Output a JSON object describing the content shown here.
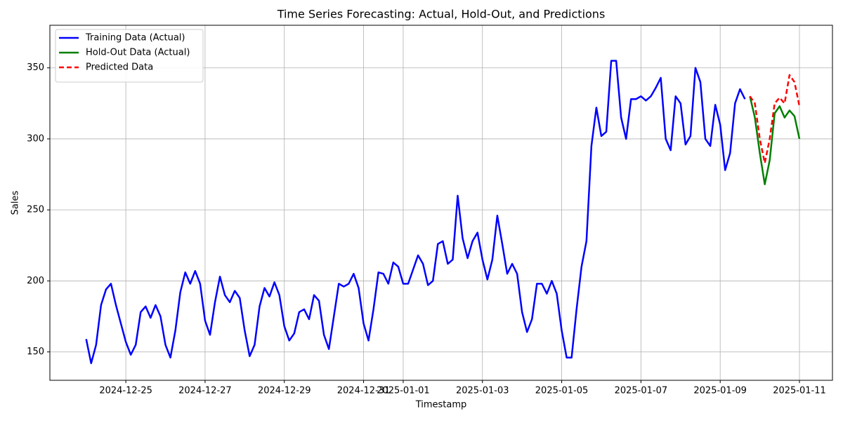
{
  "chart_data": {
    "type": "line",
    "title": "Time Series Forecasting: Actual, Hold-Out, and Predictions",
    "x_label": "Timestamp",
    "y_label": "Sales",
    "xlim": [
      "2024-12-23 02:00",
      "2025-01-11 20:00"
    ],
    "xticks": [
      "2024-12-25",
      "2024-12-27",
      "2024-12-29",
      "2024-12-31",
      "2025-01-01",
      "2025-01-03",
      "2025-01-05",
      "2025-01-07",
      "2025-01-09",
      "2025-01-11"
    ],
    "ylim": [
      130,
      380
    ],
    "yticks": [
      150,
      200,
      250,
      300,
      350
    ],
    "grid": true,
    "legend": "upper left",
    "series": [
      {
        "name": "Training Data (Actual)",
        "color": "#0000ff",
        "dash": false,
        "x": [
          "2024-12-24 00:00",
          "2024-12-24 03:00",
          "2024-12-24 06:00",
          "2024-12-24 09:00",
          "2024-12-24 12:00",
          "2024-12-24 15:00",
          "2024-12-24 18:00",
          "2024-12-24 21:00",
          "2024-12-25 00:00",
          "2024-12-25 03:00",
          "2024-12-25 06:00",
          "2024-12-25 09:00",
          "2024-12-25 12:00",
          "2024-12-25 15:00",
          "2024-12-25 18:00",
          "2024-12-25 21:00",
          "2024-12-26 00:00",
          "2024-12-26 03:00",
          "2024-12-26 06:00",
          "2024-12-26 09:00",
          "2024-12-26 12:00",
          "2024-12-26 15:00",
          "2024-12-26 18:00",
          "2024-12-26 21:00",
          "2024-12-27 00:00",
          "2024-12-27 03:00",
          "2024-12-27 06:00",
          "2024-12-27 09:00",
          "2024-12-27 12:00",
          "2024-12-27 15:00",
          "2024-12-27 18:00",
          "2024-12-27 21:00",
          "2024-12-28 00:00",
          "2024-12-28 03:00",
          "2024-12-28 06:00",
          "2024-12-28 09:00",
          "2024-12-28 12:00",
          "2024-12-28 15:00",
          "2024-12-28 18:00",
          "2024-12-28 21:00",
          "2024-12-29 00:00",
          "2024-12-29 03:00",
          "2024-12-29 06:00",
          "2024-12-29 09:00",
          "2024-12-29 12:00",
          "2024-12-29 15:00",
          "2024-12-29 18:00",
          "2024-12-29 21:00",
          "2024-12-30 00:00",
          "2024-12-30 03:00",
          "2024-12-30 06:00",
          "2024-12-30 09:00",
          "2024-12-30 12:00",
          "2024-12-30 15:00",
          "2024-12-30 18:00",
          "2024-12-30 21:00",
          "2024-12-31 00:00",
          "2024-12-31 03:00",
          "2024-12-31 06:00",
          "2024-12-31 09:00",
          "2024-12-31 12:00",
          "2024-12-31 15:00",
          "2024-12-31 18:00",
          "2024-12-31 21:00",
          "2025-01-01 00:00",
          "2025-01-01 03:00",
          "2025-01-01 06:00",
          "2025-01-01 09:00",
          "2025-01-01 12:00",
          "2025-01-01 15:00",
          "2025-01-01 18:00",
          "2025-01-01 21:00",
          "2025-01-02 00:00",
          "2025-01-02 03:00",
          "2025-01-02 06:00",
          "2025-01-02 09:00",
          "2025-01-02 12:00",
          "2025-01-02 15:00",
          "2025-01-02 18:00",
          "2025-01-02 21:00",
          "2025-01-03 00:00",
          "2025-01-03 03:00",
          "2025-01-03 06:00",
          "2025-01-03 09:00",
          "2025-01-03 12:00",
          "2025-01-03 15:00",
          "2025-01-03 18:00",
          "2025-01-03 21:00",
          "2025-01-04 00:00",
          "2025-01-04 03:00",
          "2025-01-04 06:00",
          "2025-01-04 09:00",
          "2025-01-04 12:00",
          "2025-01-04 15:00",
          "2025-01-04 18:00",
          "2025-01-04 21:00",
          "2025-01-05 00:00",
          "2025-01-05 03:00",
          "2025-01-05 06:00",
          "2025-01-05 09:00",
          "2025-01-05 12:00",
          "2025-01-05 15:00",
          "2025-01-05 18:00",
          "2025-01-05 21:00",
          "2025-01-06 00:00",
          "2025-01-06 03:00",
          "2025-01-06 06:00",
          "2025-01-06 09:00",
          "2025-01-06 12:00",
          "2025-01-06 15:00",
          "2025-01-06 18:00",
          "2025-01-06 21:00",
          "2025-01-07 00:00",
          "2025-01-07 03:00",
          "2025-01-07 06:00",
          "2025-01-07 09:00",
          "2025-01-07 12:00",
          "2025-01-07 15:00",
          "2025-01-07 18:00",
          "2025-01-07 21:00",
          "2025-01-08 00:00",
          "2025-01-08 03:00",
          "2025-01-08 06:00",
          "2025-01-08 09:00",
          "2025-01-08 12:00",
          "2025-01-08 15:00",
          "2025-01-08 18:00",
          "2025-01-08 21:00",
          "2025-01-09 00:00",
          "2025-01-09 03:00",
          "2025-01-09 06:00",
          "2025-01-09 09:00",
          "2025-01-09 12:00",
          "2025-01-09 15:00"
        ],
        "values": [
          159,
          142,
          155,
          183,
          194,
          198,
          183,
          170,
          157,
          148,
          155,
          178,
          182,
          174,
          183,
          175,
          155,
          146,
          165,
          192,
          206,
          198,
          207,
          198,
          172,
          162,
          185,
          203,
          190,
          185,
          193,
          188,
          165,
          147,
          155,
          182,
          195,
          189,
          199,
          190,
          168,
          158,
          163,
          178,
          180,
          173,
          190,
          186,
          162,
          152,
          175,
          198,
          196,
          198,
          205,
          195,
          170,
          158,
          180,
          206,
          205,
          198,
          213,
          210,
          198,
          198,
          208,
          218,
          212,
          197,
          200,
          226,
          228,
          212,
          215,
          260,
          230,
          216,
          228,
          234,
          215,
          201,
          215,
          246,
          226,
          205,
          212,
          205,
          178,
          164,
          173,
          198,
          198,
          191,
          200,
          191,
          165,
          146,
          146,
          180,
          210,
          228,
          295,
          322,
          302,
          305,
          355,
          355,
          315,
          300,
          328,
          328,
          330,
          327,
          330,
          336,
          343,
          300,
          292,
          330,
          325,
          296,
          302,
          350,
          340,
          300,
          295,
          324,
          310,
          278,
          290,
          325,
          335,
          328
        ]
      },
      {
        "name": "Hold-Out Data (Actual)",
        "color": "#008000",
        "dash": false,
        "x": [
          "2025-01-09 18:00",
          "2025-01-09 21:00",
          "2025-01-10 00:00",
          "2025-01-10 03:00",
          "2025-01-10 06:00",
          "2025-01-10 09:00",
          "2025-01-10 12:00",
          "2025-01-10 15:00",
          "2025-01-10 18:00",
          "2025-01-10 21:00",
          "2025-01-11 00:00"
        ],
        "values": [
          330,
          315,
          290,
          268,
          285,
          318,
          323,
          315,
          320,
          316,
          300
        ]
      },
      {
        "name": "Predicted Data",
        "color": "#ff0000",
        "dash": true,
        "x": [
          "2025-01-09 18:00",
          "2025-01-09 21:00",
          "2025-01-10 00:00",
          "2025-01-10 03:00",
          "2025-01-10 06:00",
          "2025-01-10 09:00",
          "2025-01-10 12:00",
          "2025-01-10 15:00",
          "2025-01-10 18:00",
          "2025-01-10 21:00",
          "2025-01-11 00:00"
        ],
        "values": [
          330,
          325,
          300,
          283,
          300,
          325,
          329,
          325,
          345,
          340,
          323
        ]
      }
    ]
  }
}
